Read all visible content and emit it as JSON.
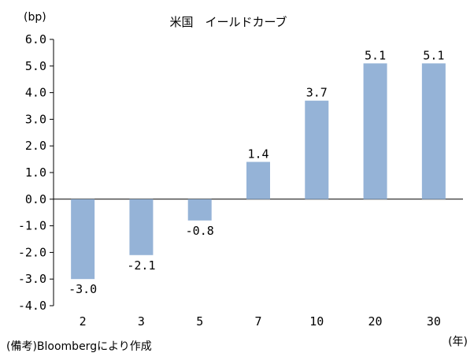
{
  "chart_data": {
    "type": "bar",
    "title": "米国　イールドカーブ",
    "ylabel": "(bp)",
    "xlabel": "(年)",
    "source": "(備考)Bloombergにより作成",
    "categories": [
      "2",
      "3",
      "5",
      "7",
      "10",
      "20",
      "30"
    ],
    "values": [
      -3.0,
      -2.1,
      -0.8,
      1.4,
      3.7,
      5.1,
      5.1
    ],
    "data_labels": [
      "-3.0",
      "-2.1",
      "-0.8",
      "1.4",
      "3.7",
      "5.1",
      "5.1"
    ],
    "ylim": [
      -4.0,
      6.0
    ],
    "yticks": [
      "6.0",
      "5.0",
      "4.0",
      "3.0",
      "2.0",
      "1.0",
      "0.0",
      "-1.0",
      "-2.0",
      "-3.0",
      "-4.0"
    ],
    "ytick_values": [
      6,
      5,
      4,
      3,
      2,
      1,
      0,
      -1,
      -2,
      -3,
      -4
    ],
    "grid": false,
    "legend": "none",
    "bar_color": "#95b3d7"
  }
}
